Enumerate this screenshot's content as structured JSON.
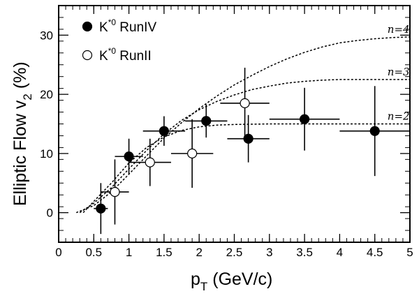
{
  "chart_data": {
    "type": "scatter",
    "title": "",
    "xlabel_main": "p",
    "xlabel_sub": "T",
    "xlabel_rest": " (GeV/c)",
    "ylabel_main": "Elliptic Flow v",
    "ylabel_sub": "2",
    "ylabel_rest": " (%)",
    "xlim": [
      0,
      5
    ],
    "ylim": [
      -5,
      35
    ],
    "x_ticks": [
      0,
      0.5,
      1,
      1.5,
      2,
      2.5,
      3,
      3.5,
      4,
      4.5,
      5
    ],
    "x_tick_labels": [
      "0",
      "0.5",
      "1",
      "1.5",
      "2",
      "2.5",
      "3",
      "3.5",
      "4",
      "4.5",
      "5"
    ],
    "y_ticks": [
      0,
      10,
      20,
      30
    ],
    "y_tick_labels": [
      "0",
      "10",
      "20",
      "30"
    ],
    "grid": false,
    "legend_position": "top-left",
    "series": [
      {
        "legend_main": "K",
        "legend_sup": "*0",
        "legend_rest": " RunIV",
        "marker": "filled-circle",
        "points": [
          {
            "x": 0.6,
            "y": 0.7,
            "xerr": 0.1,
            "yerr": 4.3
          },
          {
            "x": 1.0,
            "y": 9.5,
            "xerr": 0.2,
            "yerr": 3.0
          },
          {
            "x": 1.5,
            "y": 13.8,
            "xerr": 0.3,
            "yerr": 2.5
          },
          {
            "x": 2.1,
            "y": 15.5,
            "xerr": 0.3,
            "yerr": 2.8
          },
          {
            "x": 2.7,
            "y": 12.5,
            "xerr": 0.3,
            "yerr": 4.0
          },
          {
            "x": 3.5,
            "y": 15.8,
            "xerr": 0.5,
            "yerr": 5.3
          },
          {
            "x": 4.5,
            "y": 13.8,
            "xerr": 0.5,
            "yerr": 7.6
          }
        ]
      },
      {
        "legend_main": "K",
        "legend_sup": "*0",
        "legend_rest": " RunII",
        "marker": "open-circle",
        "points": [
          {
            "x": 0.8,
            "y": 3.5,
            "xerr": 0.2,
            "yerr": 5.5
          },
          {
            "x": 1.3,
            "y": 8.5,
            "xerr": 0.3,
            "yerr": 4.0
          },
          {
            "x": 1.9,
            "y": 10.0,
            "xerr": 0.3,
            "yerr": 5.8
          },
          {
            "x": 2.65,
            "y": 18.5,
            "xerr": 0.35,
            "yerr": 6.0
          }
        ]
      }
    ],
    "curves": [
      {
        "label": "n=4",
        "style": "dotted",
        "points": [
          [
            0.25,
            0
          ],
          [
            0.5,
            1.2
          ],
          [
            0.75,
            3.5
          ],
          [
            1.0,
            6.5
          ],
          [
            1.25,
            9.6
          ],
          [
            1.5,
            12.6
          ],
          [
            1.75,
            15.2
          ],
          [
            2.0,
            17.6
          ],
          [
            2.25,
            19.7
          ],
          [
            2.5,
            21.6
          ],
          [
            2.75,
            23.2
          ],
          [
            3.0,
            24.7
          ],
          [
            3.25,
            26.0
          ],
          [
            3.5,
            27.1
          ],
          [
            3.75,
            28.0
          ],
          [
            4.0,
            28.7
          ],
          [
            4.25,
            29.1
          ],
          [
            4.5,
            29.4
          ],
          [
            4.75,
            29.6
          ],
          [
            5.0,
            29.7
          ]
        ]
      },
      {
        "label": "n=3",
        "style": "dotted",
        "points": [
          [
            0.3,
            0
          ],
          [
            0.5,
            1.6
          ],
          [
            0.75,
            4.2
          ],
          [
            1.0,
            7.4
          ],
          [
            1.25,
            10.5
          ],
          [
            1.5,
            13.3
          ],
          [
            1.75,
            15.6
          ],
          [
            2.0,
            17.4
          ],
          [
            2.25,
            18.8
          ],
          [
            2.5,
            19.9
          ],
          [
            2.75,
            20.8
          ],
          [
            3.0,
            21.4
          ],
          [
            3.25,
            21.9
          ],
          [
            3.5,
            22.2
          ],
          [
            3.75,
            22.4
          ],
          [
            4.0,
            22.5
          ],
          [
            5.0,
            22.5
          ]
        ]
      },
      {
        "label": "n=2",
        "style": "dotted",
        "points": [
          [
            0.35,
            0
          ],
          [
            0.5,
            1.9
          ],
          [
            0.75,
            5.0
          ],
          [
            1.0,
            8.4
          ],
          [
            1.25,
            11.0
          ],
          [
            1.5,
            12.8
          ],
          [
            1.75,
            13.9
          ],
          [
            2.0,
            14.5
          ],
          [
            2.25,
            14.8
          ],
          [
            2.5,
            14.9
          ],
          [
            3.0,
            15.0
          ],
          [
            5.0,
            15.0
          ]
        ]
      }
    ]
  }
}
